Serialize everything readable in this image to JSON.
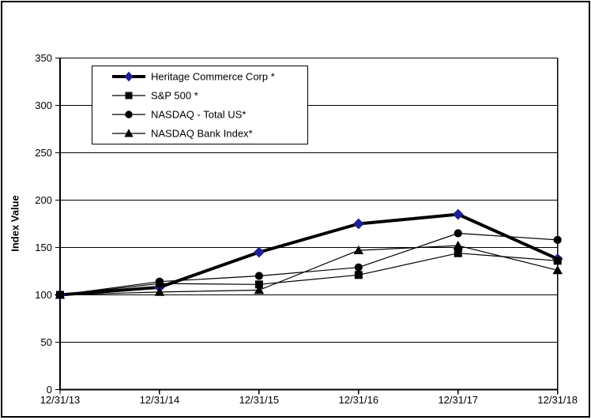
{
  "figure": {
    "ylabel": "Index Value",
    "background_color": "#ffffff",
    "border_color": "#000000",
    "grid_color": "#000000",
    "text_color": "#000000"
  },
  "chart_data": {
    "type": "line",
    "title": "",
    "xlabel": "",
    "ylabel": "Index Value",
    "categories": [
      "12/31/13",
      "12/31/14",
      "12/31/15",
      "12/31/16",
      "12/31/17",
      "12/31/18"
    ],
    "series": [
      {
        "name": "Heritage Commerce Corp *",
        "values": [
          100,
          108,
          145,
          175,
          185,
          138
        ],
        "marker": "diamond",
        "line_color": "#000000",
        "marker_color": "#1f1f96",
        "line_width": 4
      },
      {
        "name": "S&P 500 *",
        "values": [
          100,
          112,
          111,
          121,
          144,
          136
        ],
        "marker": "square",
        "line_color": "#000000",
        "marker_color": "#000000",
        "line_width": 1.2
      },
      {
        "name": "NASDAQ - Total US*",
        "values": [
          100,
          114,
          120,
          129,
          165,
          158
        ],
        "marker": "circle",
        "line_color": "#000000",
        "marker_color": "#000000",
        "line_width": 1.2
      },
      {
        "name": "NASDAQ Bank Index*",
        "values": [
          100,
          103,
          105,
          147,
          152,
          126
        ],
        "marker": "triangle",
        "line_color": "#000000",
        "marker_color": "#000000",
        "line_width": 1.2
      }
    ],
    "ylim": [
      0,
      350
    ],
    "yticks": [
      0,
      50,
      100,
      150,
      200,
      250,
      300,
      350
    ],
    "grid": true,
    "legend_position": "upper-left-inside"
  }
}
